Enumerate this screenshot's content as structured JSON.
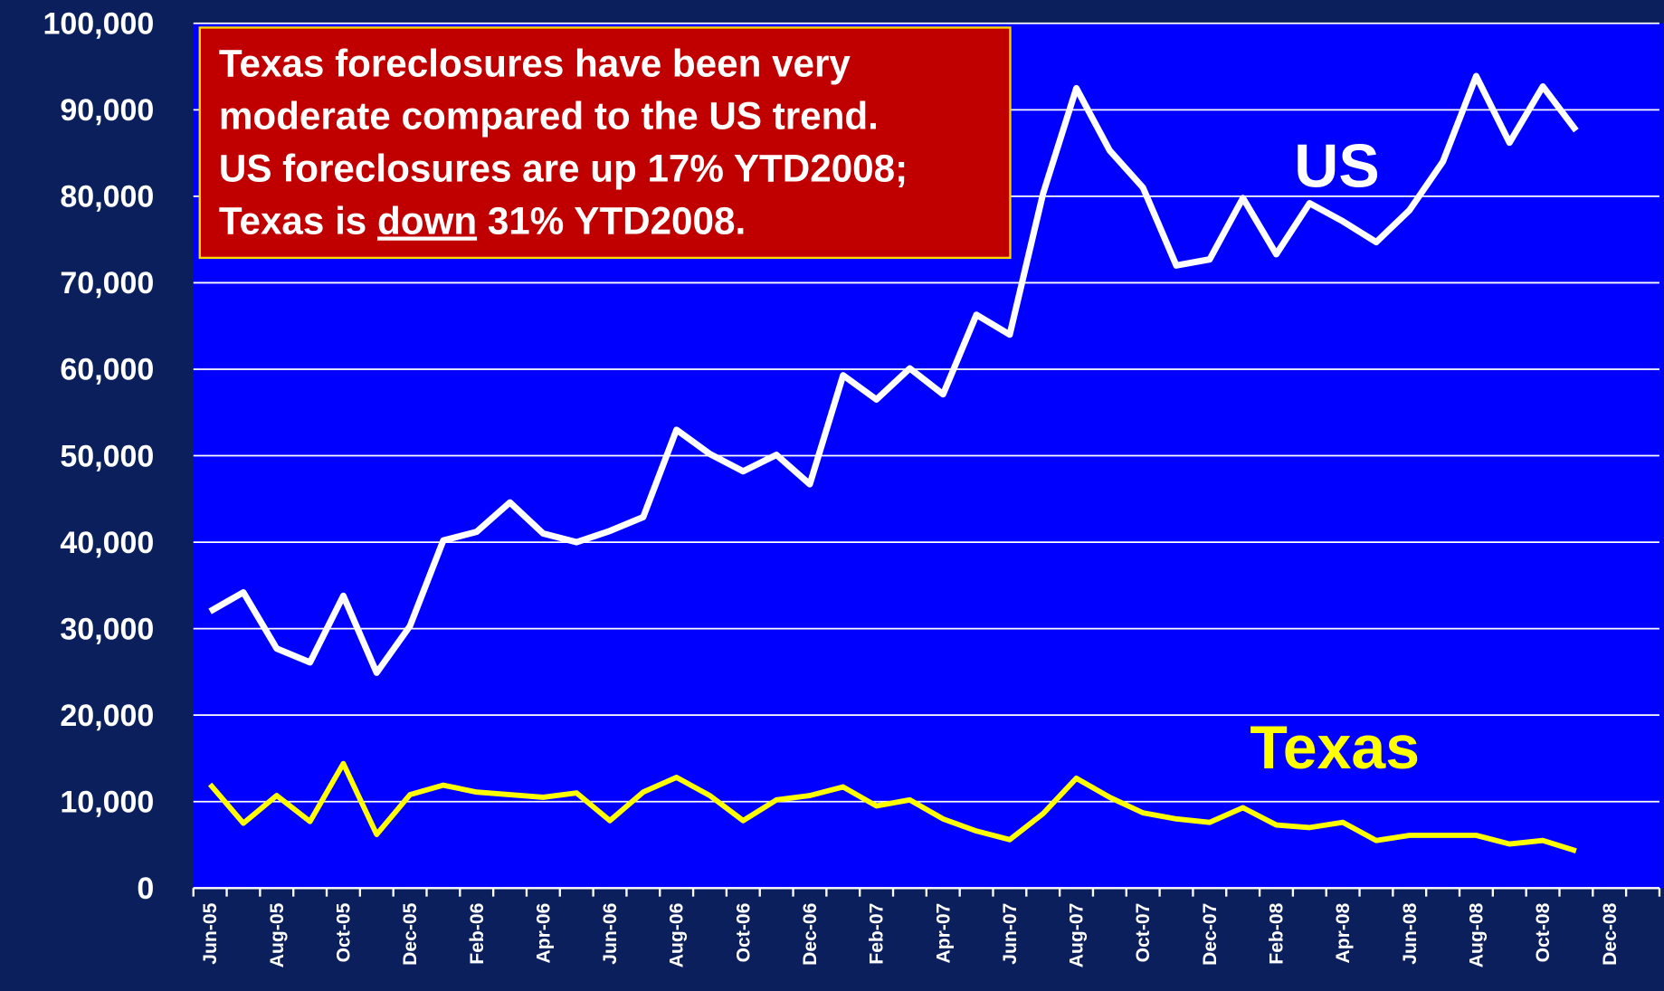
{
  "chart_data": {
    "type": "line",
    "categories": [
      "Jun-05",
      null,
      "Aug-05",
      null,
      "Oct-05",
      null,
      "Dec-05",
      null,
      "Feb-06",
      null,
      "Apr-06",
      null,
      "Jun-06",
      null,
      "Aug-06",
      null,
      "Oct-06",
      null,
      "Dec-06",
      null,
      "Feb-07",
      null,
      "Apr-07",
      null,
      "Jun-07",
      null,
      "Aug-07",
      null,
      "Oct-07",
      null,
      "Dec-07",
      null,
      "Feb-08",
      null,
      "Apr-08",
      null,
      "Jun-08",
      null,
      "Aug-08",
      null,
      "Oct-08",
      null,
      "Dec-08",
      null
    ],
    "series": [
      {
        "name": "US",
        "color": "#ffffff",
        "values": [
          32000,
          34200,
          27700,
          26100,
          33800,
          24900,
          30300,
          40200,
          41200,
          44600,
          41000,
          40000,
          41300,
          42900,
          53000,
          50200,
          48200,
          50100,
          46700,
          59300,
          56500,
          60100,
          57100,
          66300,
          64000,
          80300,
          92500,
          85300,
          81000,
          72000,
          72700,
          79800,
          73300,
          79200,
          77100,
          74700,
          78400,
          84000,
          93900,
          86200,
          92700,
          87600,
          null,
          null
        ]
      },
      {
        "name": "Texas",
        "color": "#ffff00",
        "values": [
          12000,
          7500,
          10700,
          7700,
          14400,
          6200,
          10800,
          11900,
          11100,
          10800,
          10500,
          11000,
          7800,
          11100,
          12800,
          10700,
          7800,
          10200,
          10700,
          11700,
          9500,
          10200,
          8000,
          6600,
          5600,
          8600,
          12700,
          10500,
          8700,
          8000,
          7600,
          9300,
          7300,
          7000,
          7600,
          5500,
          6100,
          6100,
          6100,
          5100,
          5500,
          4300,
          null,
          null
        ]
      }
    ],
    "ylim": [
      0,
      100000
    ],
    "yticks": [
      0,
      {
        "value": 10000,
        "label": "10,000"
      },
      {
        "value": 20000,
        "label": "20,000"
      },
      {
        "value": 30000,
        "label": "30,000"
      },
      {
        "value": 40000,
        "label": "40,000"
      },
      {
        "value": 50000,
        "label": "50,000"
      },
      {
        "value": 60000,
        "label": "60,000"
      },
      {
        "value": 70000,
        "label": "70,000"
      },
      {
        "value": 80000,
        "label": "80,000"
      },
      {
        "value": 90000,
        "label": "90,000"
      },
      {
        "value": 100000,
        "label": "100,000"
      }
    ],
    "grid": true,
    "annotation": {
      "lines": [
        "Texas foreclosures have been very",
        "moderate compared to the US trend.",
        "US foreclosures are up 17% YTD2008;"
      ],
      "last_line": [
        "Texas is ",
        "down",
        " 31% YTD2008."
      ]
    }
  }
}
